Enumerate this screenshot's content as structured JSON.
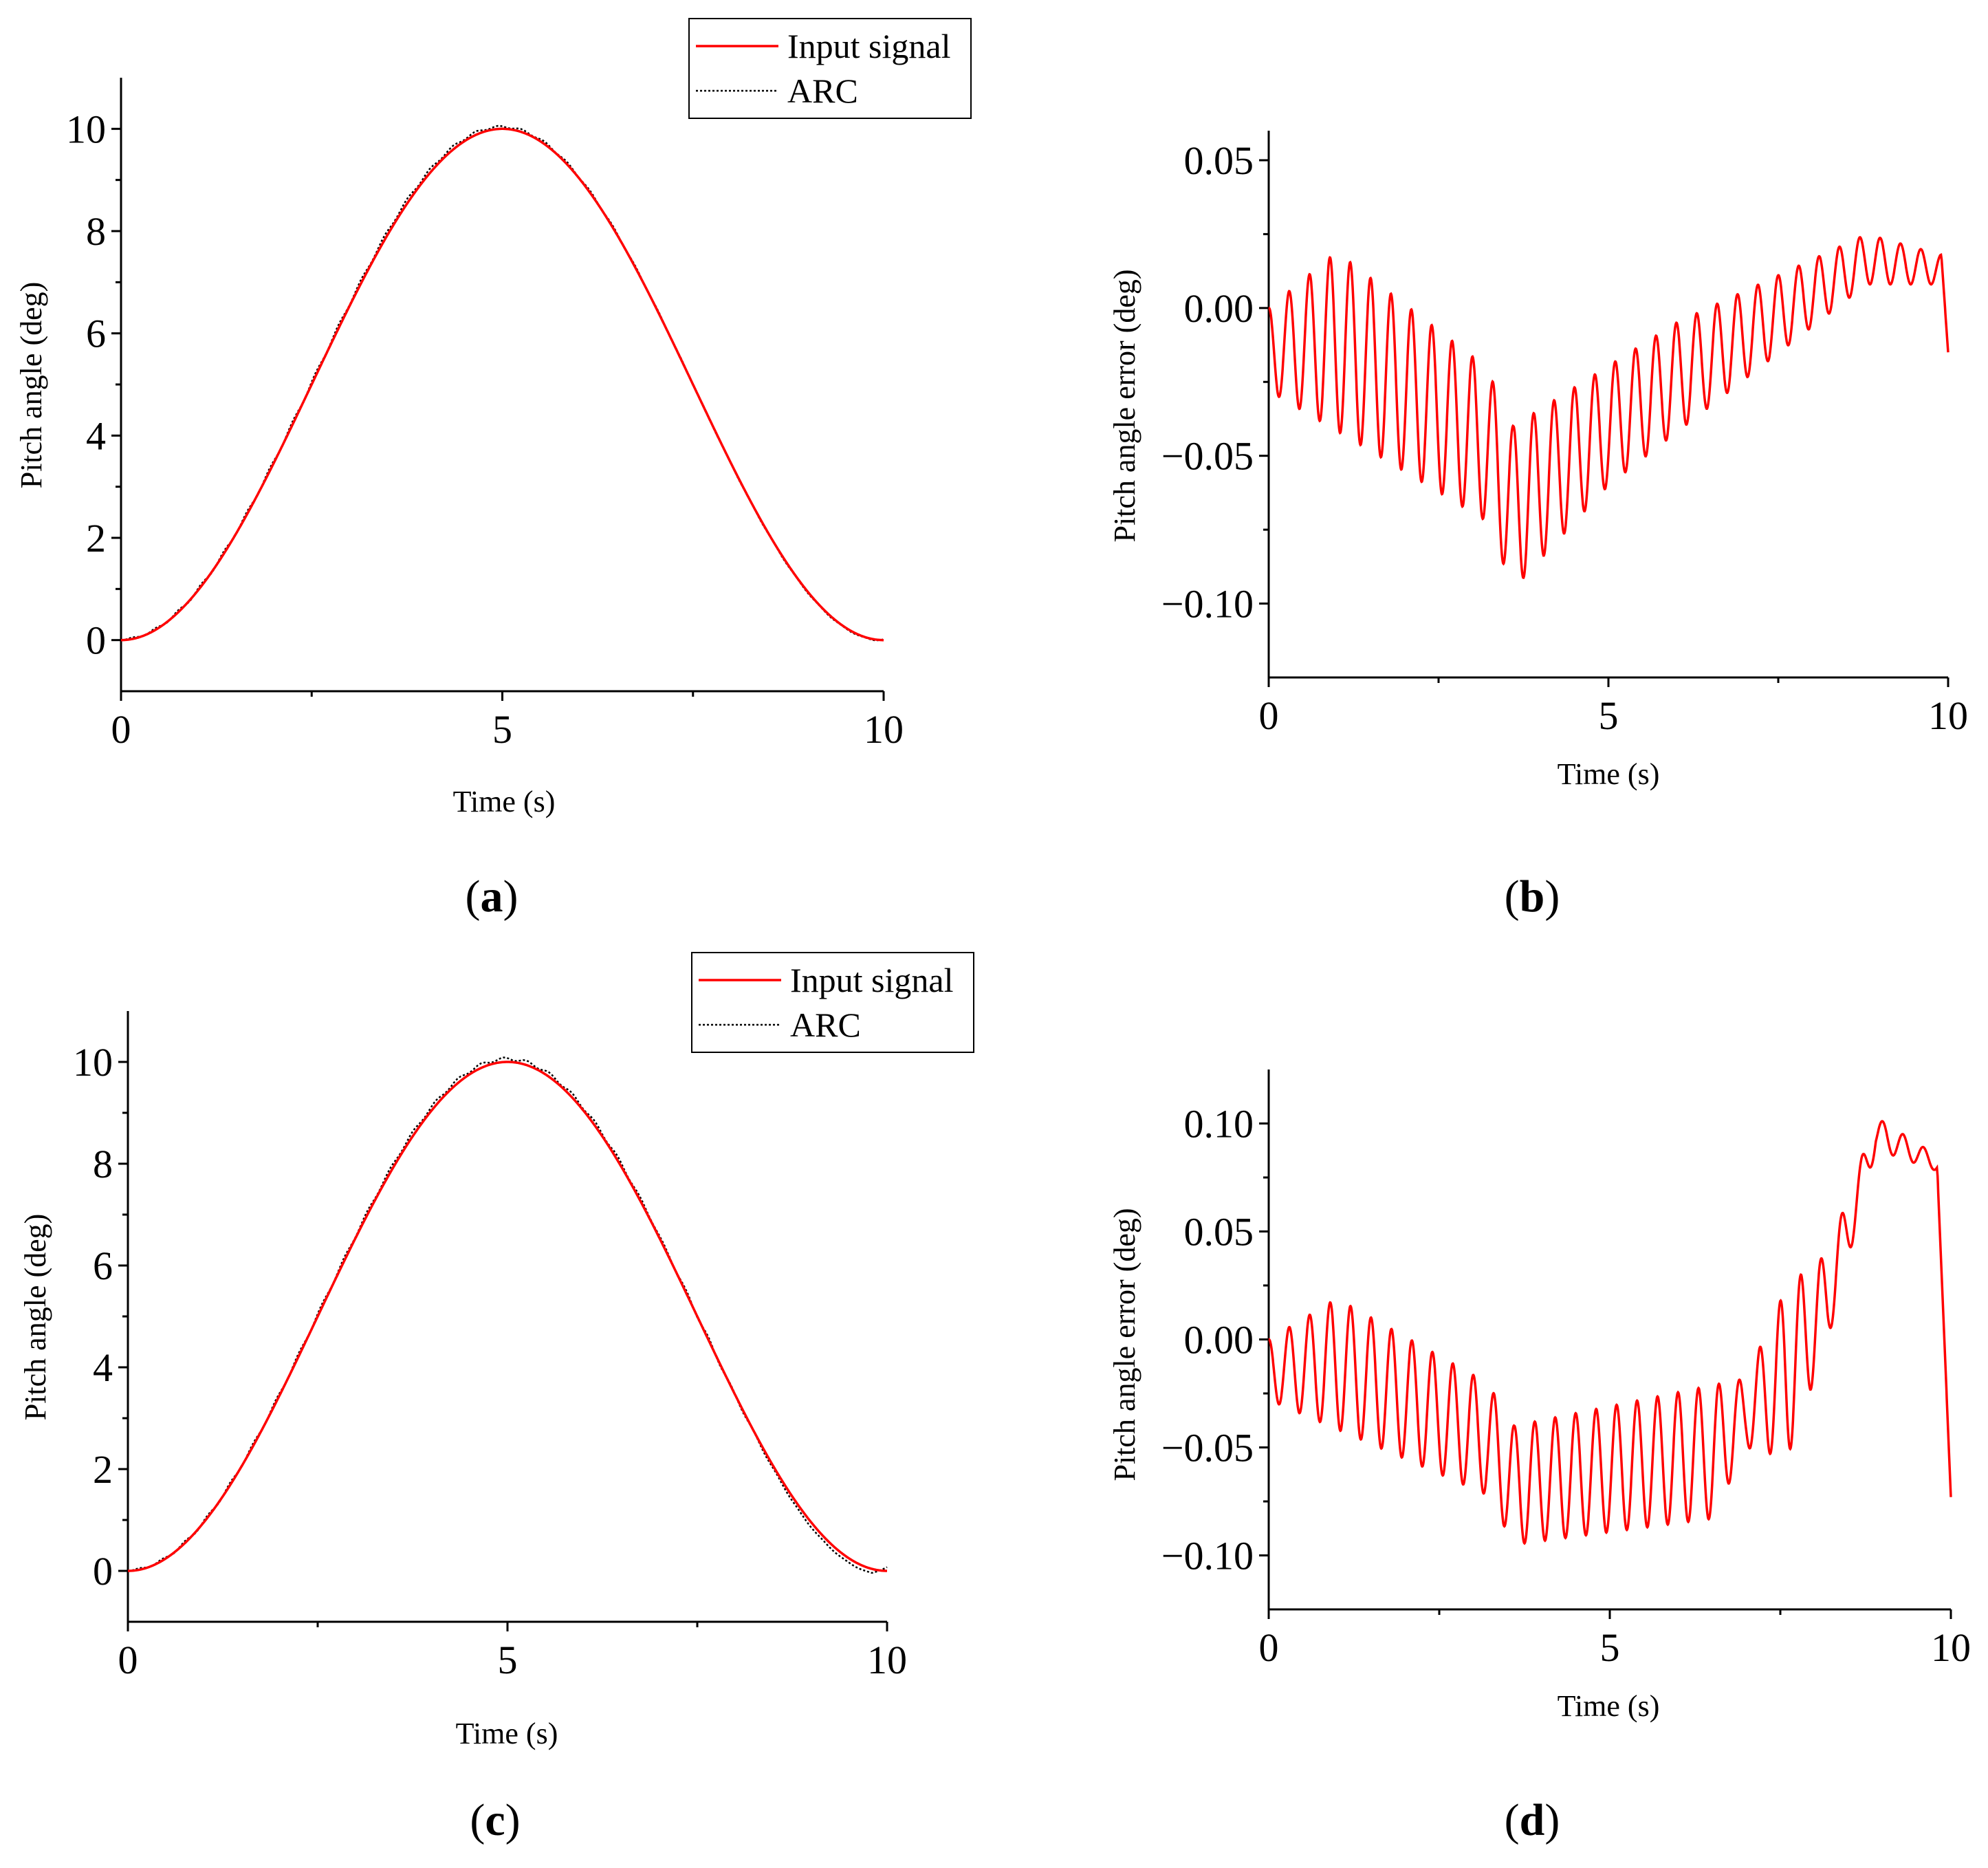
{
  "colors": {
    "input": "#ff0000",
    "arc": "#000000"
  },
  "chart_data": [
    {
      "panel": "a",
      "type": "line",
      "panel_label_open": "(",
      "panel_label_letter": "a",
      "panel_label_close": ")",
      "xlabel": "Time (s)",
      "ylabel": "Pitch angle (deg)",
      "xlim": [
        0,
        10
      ],
      "ylim": [
        -1,
        11
      ],
      "xticks": [
        0,
        5,
        10
      ],
      "xtick_labels": [
        "0",
        "5",
        "10"
      ],
      "yticks": [
        0,
        2,
        4,
        6,
        8,
        10
      ],
      "ytick_labels": [
        "0",
        "2",
        "4",
        "6",
        "8",
        "10"
      ],
      "legend": [
        "Input signal",
        "ARC"
      ],
      "legend_position": "top-right",
      "series": [
        {
          "name": "Input signal",
          "style": "solid",
          "generator": "5*(1-cos(pi*t/5))",
          "t_range": [
            0,
            10
          ]
        },
        {
          "name": "ARC",
          "style": "dotted",
          "generator": "input signal plus small tracking error (panel b)",
          "t_range": [
            0,
            10
          ]
        }
      ]
    },
    {
      "panel": "b",
      "type": "line",
      "panel_label_open": "(",
      "panel_label_letter": "b",
      "panel_label_close": ")",
      "xlabel": "Time (s)",
      "ylabel": "Pitch angle error (deg)",
      "xlim": [
        0,
        10
      ],
      "ylim": [
        -0.125,
        0.06
      ],
      "xticks": [
        0,
        5,
        10
      ],
      "xtick_labels": [
        "0",
        "5",
        "10"
      ],
      "yticks": [
        0.05,
        0.0,
        -0.05,
        -0.1
      ],
      "ytick_labels": [
        "0.05",
        "0.00",
        "−0.05",
        "−0.10"
      ],
      "series": [
        {
          "name": "Pitch angle error",
          "oscillation_period_s": 0.3,
          "upper_envelope": {
            "t": [
              0,
              1.0,
              3.2,
              3.6,
              6.0,
              8.8,
              9.9
            ],
            "v": [
              0.0,
              0.019,
              -0.02,
              -0.04,
              -0.005,
              0.025,
              0.018
            ]
          },
          "lower_envelope": {
            "t": [
              0,
              1.4,
              3.2,
              3.6,
              5.0,
              8.8,
              9.9
            ],
            "v": [
              -0.028,
              -0.047,
              -0.072,
              -0.095,
              -0.06,
              0.008,
              0.008
            ]
          },
          "end_value": -0.015
        }
      ]
    },
    {
      "panel": "c",
      "type": "line",
      "panel_label_open": "(",
      "panel_label_letter": "c",
      "panel_label_close": ")",
      "xlabel": "Time (s)",
      "ylabel": "Pitch angle (deg)",
      "xlim": [
        0,
        10
      ],
      "ylim": [
        -1,
        11
      ],
      "xticks": [
        0,
        5,
        10
      ],
      "xtick_labels": [
        "0",
        "5",
        "10"
      ],
      "yticks": [
        0,
        2,
        4,
        6,
        8,
        10
      ],
      "ytick_labels": [
        "0",
        "2",
        "4",
        "6",
        "8",
        "10"
      ],
      "legend": [
        "Input signal",
        "ARC"
      ],
      "legend_position": "top-right",
      "series": [
        {
          "name": "Input signal",
          "style": "solid",
          "generator": "5*(1-cos(pi*t/5))",
          "t_range": [
            0,
            10
          ]
        },
        {
          "name": "ARC",
          "style": "dotted",
          "generator": "input signal plus small tracking error (panel d)",
          "t_range": [
            0,
            10
          ]
        }
      ]
    },
    {
      "panel": "d",
      "type": "line",
      "panel_label_open": "(",
      "panel_label_letter": "d",
      "panel_label_close": ")",
      "xlabel": "Time (s)",
      "ylabel": "Pitch angle error (deg)",
      "xlim": [
        0,
        10
      ],
      "ylim": [
        -0.125,
        0.125
      ],
      "xticks": [
        0,
        5,
        10
      ],
      "xtick_labels": [
        "0",
        "5",
        "10"
      ],
      "yticks": [
        0.1,
        0.05,
        0.0,
        -0.05,
        -0.1
      ],
      "ytick_labels": [
        "0.10",
        "0.05",
        "0.00",
        "−0.05",
        "−0.10"
      ],
      "series": [
        {
          "name": "Pitch angle error",
          "oscillation_period_s": 0.3,
          "upper_envelope": {
            "t": [
              0,
              1.0,
              3.2,
              3.6,
              7.0,
              7.6,
              8.2,
              8.9,
              9.8
            ],
            "v": [
              0.0,
              0.019,
              -0.02,
              -0.04,
              -0.018,
              0.025,
              0.04,
              0.103,
              0.085
            ]
          },
          "lower_envelope": {
            "t": [
              0,
              1.4,
              3.2,
              3.6,
              6.5,
              7.0,
              7.6,
              8.2,
              8.9,
              9.8
            ],
            "v": [
              -0.028,
              -0.047,
              -0.072,
              -0.095,
              -0.083,
              -0.05,
              -0.055,
              0.0,
              0.088,
              0.078
            ]
          },
          "end_value": -0.073
        }
      ]
    }
  ]
}
